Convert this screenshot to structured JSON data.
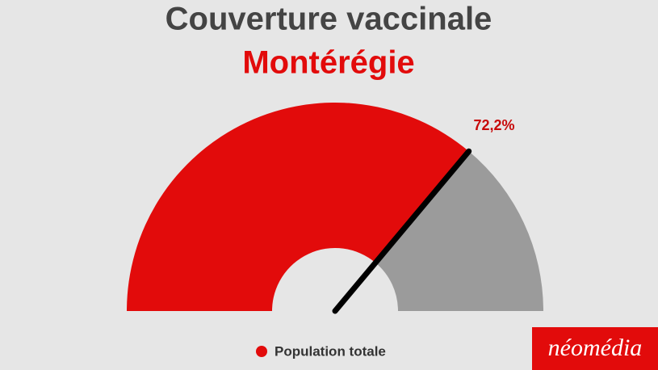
{
  "chart_data": {
    "type": "gauge",
    "title": "Couverture vaccinale",
    "subtitle": "Montérégie",
    "ylim": [
      0,
      100
    ],
    "series": [
      {
        "name": "Population totale",
        "color": "#e20b0b",
        "values": [
          72.2
        ],
        "value_labels": [
          "72,2%"
        ]
      }
    ],
    "track_color": "#9b9b9b",
    "needle_color": "#000000"
  },
  "logo": "néomédia"
}
